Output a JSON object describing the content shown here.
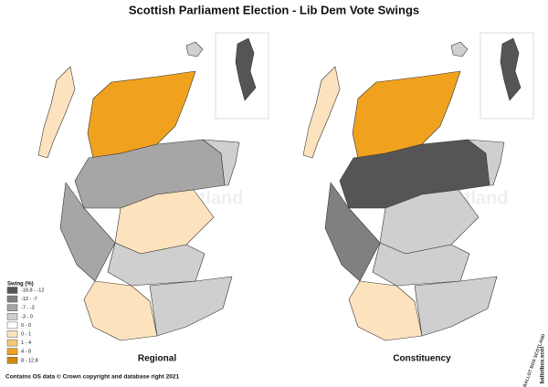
{
  "title": "Scottish Parliament Election - Lib Dem Vote Swings",
  "legend": {
    "title": "Swing (%)",
    "items": [
      {
        "label": "-18.8 - -12",
        "color": "#555555"
      },
      {
        "label": "-12 - -7",
        "color": "#808080"
      },
      {
        "label": "-7 - -3",
        "color": "#a6a6a6"
      },
      {
        "label": "-3 - 0",
        "color": "#cfcfcf"
      },
      {
        "label": "0 - 0",
        "color": "#ffffff"
      },
      {
        "label": "0 - 1",
        "color": "#fde3bd"
      },
      {
        "label": "1 - 4",
        "color": "#f8c878"
      },
      {
        "label": "4 - 8",
        "color": "#f0a21e"
      },
      {
        "label": "8 - 12.8",
        "color": "#d4870c"
      }
    ]
  },
  "maps": [
    {
      "label": "Regional"
    },
    {
      "label": "Constituency"
    }
  ],
  "watermark": "Ballot Box Scotland",
  "footer": "Contains OS data © Crown copyright and database right 2021",
  "logo": {
    "text": "BALLOT BOX SCOTLAND",
    "url": "ballotbox.scot"
  }
}
